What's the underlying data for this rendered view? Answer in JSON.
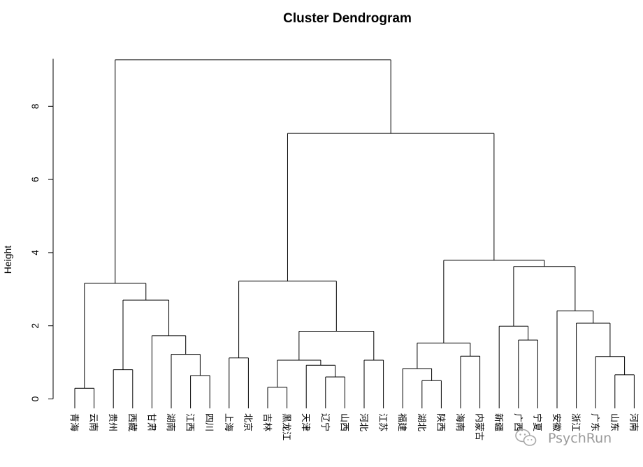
{
  "chart_data": {
    "type": "dendrogram",
    "title": "Cluster Dendrogram",
    "ylabel": "Height",
    "ylim": [
      0,
      9.3
    ],
    "y_ticks": [
      0,
      2,
      4,
      6,
      8
    ],
    "y_tick_labels": [
      "0",
      "2",
      "4",
      "6",
      "8"
    ],
    "leaves": [
      "青海",
      "云南",
      "贵州",
      "西藏",
      "甘肃",
      "湖南",
      "江西",
      "四川",
      "上海",
      "北京",
      "吉林",
      "黑龙江",
      "天津",
      "辽宁",
      "山西",
      "河北",
      "江苏",
      "福建",
      "湖北",
      "陕西",
      "海南",
      "内蒙古",
      "新疆",
      "广西",
      "宁夏",
      "安徽",
      "浙江",
      "广东",
      "山东",
      "河南"
    ],
    "merges": [
      {
        "left": "L0",
        "right": "L1",
        "height": 0.29
      },
      {
        "left": "L2",
        "right": "L3",
        "height": 0.8
      },
      {
        "left": "L6",
        "right": "L7",
        "height": 0.64
      },
      {
        "left": "L5",
        "right": "N2",
        "height": 1.22
      },
      {
        "left": "L4",
        "right": "N3",
        "height": 1.73
      },
      {
        "left": "N1",
        "right": "N4",
        "height": 2.7
      },
      {
        "left": "N0",
        "right": "N5",
        "height": 3.16
      },
      {
        "left": "L8",
        "right": "L9",
        "height": 1.12
      },
      {
        "left": "L10",
        "right": "L11",
        "height": 0.32
      },
      {
        "left": "L13",
        "right": "L14",
        "height": 0.6
      },
      {
        "left": "L12",
        "right": "N9",
        "height": 0.92
      },
      {
        "left": "N8",
        "right": "N10",
        "height": 1.06
      },
      {
        "left": "L15",
        "right": "L16",
        "height": 1.06
      },
      {
        "left": "N11",
        "right": "N12",
        "height": 1.85
      },
      {
        "left": "N7",
        "right": "N13",
        "height": 3.22
      },
      {
        "left": "L18",
        "right": "L19",
        "height": 0.5
      },
      {
        "left": "L17",
        "right": "N15",
        "height": 0.83
      },
      {
        "left": "L20",
        "right": "L21",
        "height": 1.17
      },
      {
        "left": "N16",
        "right": "N17",
        "height": 1.53
      },
      {
        "left": "L23",
        "right": "L24",
        "height": 1.61
      },
      {
        "left": "L22",
        "right": "N19",
        "height": 1.99
      },
      {
        "left": "L28",
        "right": "L29",
        "height": 0.66
      },
      {
        "left": "L27",
        "right": "N21",
        "height": 1.16
      },
      {
        "left": "L26",
        "right": "N22",
        "height": 2.07
      },
      {
        "left": "L25",
        "right": "N23",
        "height": 2.41
      },
      {
        "left": "N20",
        "right": "N24",
        "height": 3.62
      },
      {
        "left": "N18",
        "right": "N25",
        "height": 3.79
      },
      {
        "left": "N14",
        "right": "N26",
        "height": 7.26
      },
      {
        "left": "N6",
        "right": "N27",
        "height": 9.27
      }
    ]
  },
  "watermark": {
    "text": "PsychRun",
    "icon": "wechat-icon"
  }
}
